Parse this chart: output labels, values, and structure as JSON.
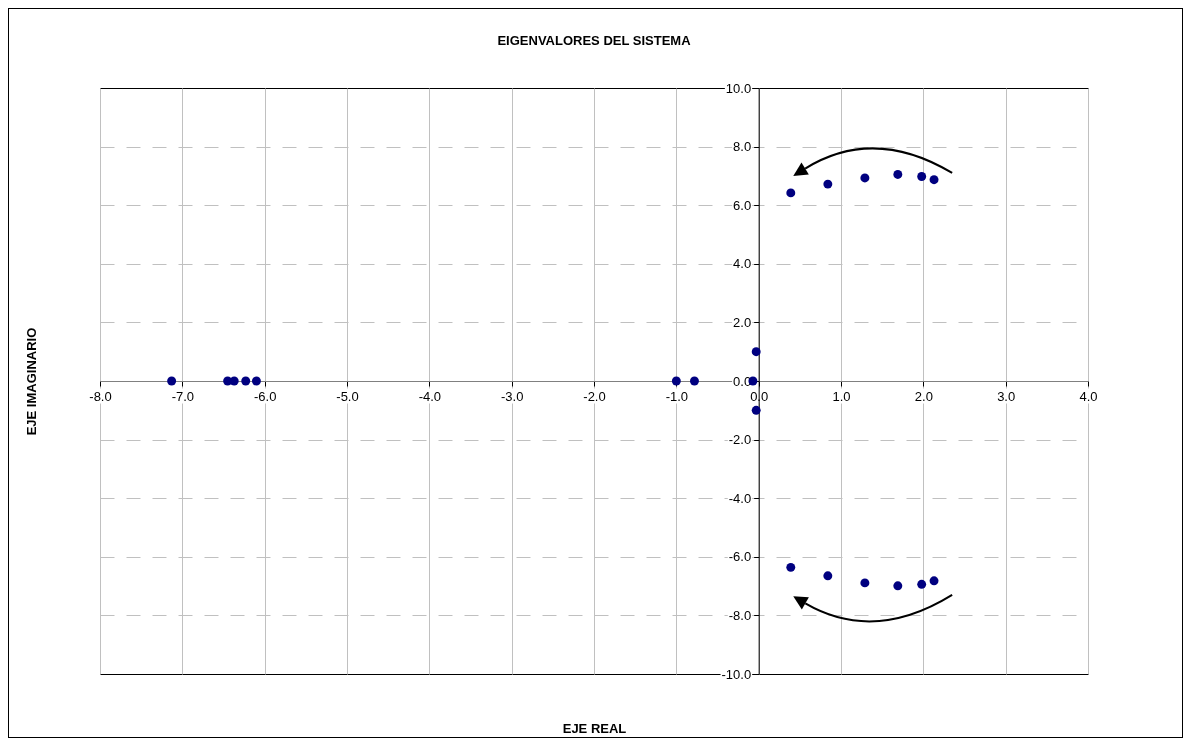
{
  "chart_data": {
    "type": "scatter",
    "title": "EIGENVALORES DEL SISTEMA",
    "xlabel": "EJE REAL",
    "ylabel": "EJE IMAGINARIO",
    "x": [
      -7.13,
      -6.45,
      -6.37,
      -6.23,
      -6.1,
      -1.0,
      -0.78,
      -0.07,
      -0.03,
      -0.03,
      0.39,
      0.84,
      1.29,
      1.69,
      1.98,
      2.13,
      0.39,
      0.84,
      1.29,
      1.69,
      1.98,
      2.13
    ],
    "series": [
      {
        "color": "#000080",
        "values": [
          0,
          0,
          0,
          0,
          0,
          0,
          0,
          0,
          1.0,
          -1.0,
          6.42,
          6.72,
          6.93,
          7.05,
          6.98,
          6.87,
          -6.36,
          -6.65,
          -6.89,
          -6.99,
          -6.94,
          -6.82
        ]
      }
    ],
    "xlim": [
      -8,
      4
    ],
    "xticks": [
      {
        "value": -8,
        "label": "-8.0"
      },
      {
        "value": -7,
        "label": "-7.0"
      },
      {
        "value": -6,
        "label": "-6.0"
      },
      {
        "value": -5,
        "label": "-5.0"
      },
      {
        "value": -4,
        "label": "-4.0"
      },
      {
        "value": -3,
        "label": "-3.0"
      },
      {
        "value": -2,
        "label": "-2.0"
      },
      {
        "value": -1,
        "label": "-1.0"
      },
      {
        "value": 0,
        "label": "0.0"
      },
      {
        "value": 1,
        "label": "1.0"
      },
      {
        "value": 2,
        "label": "2.0"
      },
      {
        "value": 3,
        "label": "3.0"
      },
      {
        "value": 4,
        "label": "4.0"
      }
    ],
    "ylim": [
      -10,
      10
    ],
    "yticks": [
      {
        "value": -10,
        "label": "-10.0"
      },
      {
        "value": -8,
        "label": "-8.0"
      },
      {
        "value": -6,
        "label": "-6.0"
      },
      {
        "value": -4,
        "label": "-4.0"
      },
      {
        "value": -2,
        "label": "-2.0"
      },
      {
        "value": 0,
        "label": "0.0"
      },
      {
        "value": 2,
        "label": "2.0"
      },
      {
        "value": 4,
        "label": "4.0"
      },
      {
        "value": 6,
        "label": "6.0"
      },
      {
        "value": 8,
        "label": "8.0"
      },
      {
        "value": 10,
        "label": "10.0"
      }
    ],
    "grid": true,
    "marker": "circle"
  }
}
